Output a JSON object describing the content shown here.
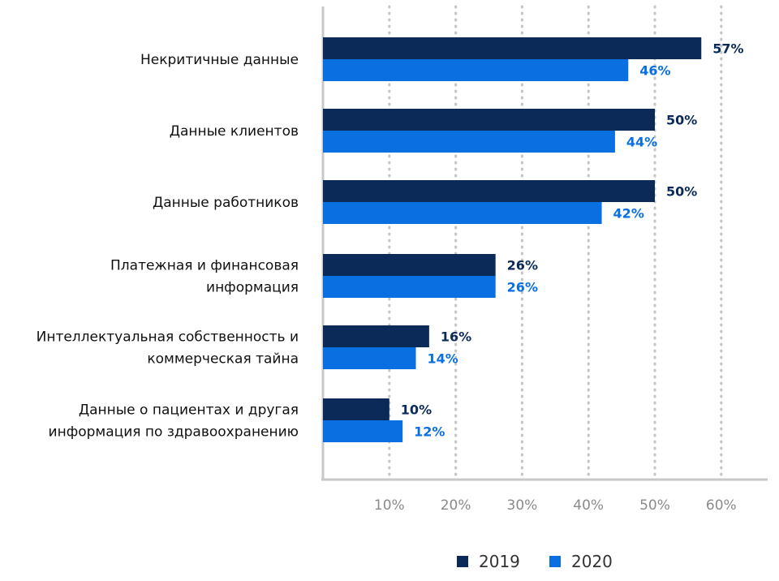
{
  "chart_data": {
    "type": "bar",
    "orientation": "horizontal",
    "categories": [
      [
        "Некритичные данные"
      ],
      [
        "Данные клиентов"
      ],
      [
        "Данные работников"
      ],
      [
        "Платежная и финансовая",
        "информация"
      ],
      [
        "Интеллектуальная собственность и",
        "коммерческая тайна"
      ],
      [
        "Данные о пациентах и другая",
        "информация по здравоохранению"
      ]
    ],
    "series": [
      {
        "name": "2019",
        "values": [
          57,
          50,
          50,
          26,
          16,
          10
        ],
        "color": "#0b2a57",
        "labels": [
          "57%",
          "50%",
          "50%",
          "26%",
          "16%",
          "10%"
        ]
      },
      {
        "name": "2020",
        "values": [
          46,
          44,
          42,
          26,
          14,
          12
        ],
        "color": "#0a6fe0",
        "labels": [
          "46%",
          "44%",
          "42%",
          "26%",
          "14%",
          "12%"
        ]
      }
    ],
    "xticks": [
      "10%",
      "20%",
      "30%",
      "40%",
      "50%",
      "60%"
    ],
    "xtick_values": [
      10,
      20,
      30,
      40,
      50,
      60
    ],
    "xlim": [
      0,
      66
    ],
    "grid": true,
    "legend_position": "bottom"
  }
}
